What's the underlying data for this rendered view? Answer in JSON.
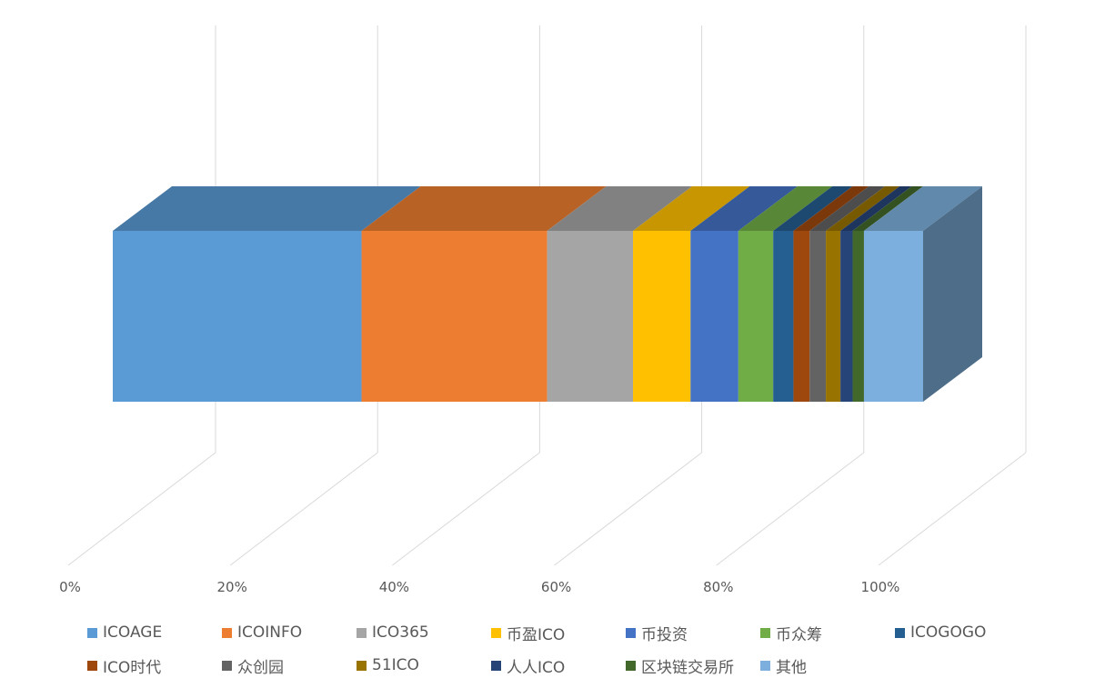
{
  "chart_data": {
    "type": "bar",
    "orientation": "horizontal-100%-stacked-3d",
    "title": "",
    "xlabel": "",
    "ylabel": "",
    "xlim": [
      0,
      100
    ],
    "x_ticks": [
      "0%",
      "20%",
      "40%",
      "60%",
      "80%",
      "100%"
    ],
    "grid": true,
    "legend_position": "bottom",
    "series": [
      {
        "name": "ICOAGE",
        "value": 30.7,
        "color": "#5B9BD5"
      },
      {
        "name": "ICOINFO",
        "value": 22.9,
        "color": "#ED7D31"
      },
      {
        "name": "ICO365",
        "value": 10.6,
        "color": "#A5A5A5"
      },
      {
        "name": "币盈ICO",
        "value": 7.1,
        "color": "#FFC000"
      },
      {
        "name": "币投资",
        "value": 5.9,
        "color": "#4472C4"
      },
      {
        "name": "币众筹",
        "value": 4.3,
        "color": "#70AD47"
      },
      {
        "name": "ICOGOGO",
        "value": 2.5,
        "color": "#255E91"
      },
      {
        "name": "ICO时代",
        "value": 2.0,
        "color": "#9E480E"
      },
      {
        "name": "众创园",
        "value": 2.0,
        "color": "#636363"
      },
      {
        "name": "51ICO",
        "value": 1.8,
        "color": "#997300"
      },
      {
        "name": "人人ICO",
        "value": 1.5,
        "color": "#264478"
      },
      {
        "name": "区块链交易所",
        "value": 1.4,
        "color": "#43682B"
      },
      {
        "name": "其他",
        "value": 7.3,
        "color": "#7CAFDD"
      }
    ]
  }
}
